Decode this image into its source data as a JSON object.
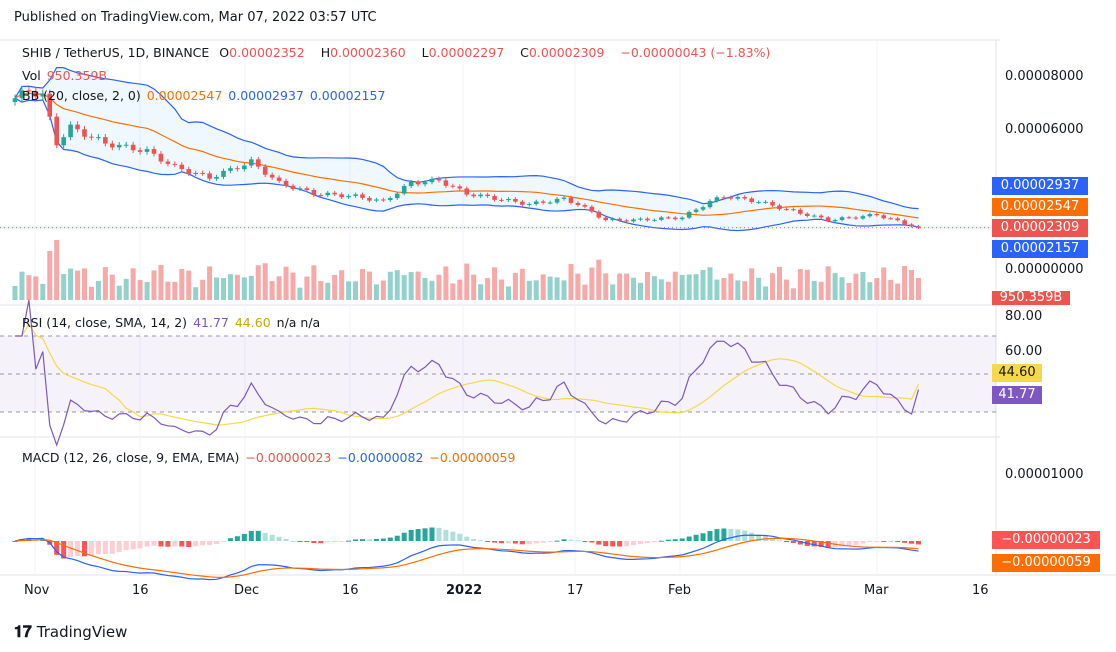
{
  "published": "Published on TradingView.com, Mar 07, 2022 03:57 UTC",
  "symbol": "SHIB / TetherUS, 1D, BINANCE",
  "ohlc": {
    "o_label": "O",
    "o": "0.00002352",
    "h_label": "H",
    "h": "0.00002360",
    "l_label": "L",
    "l": "0.00002297",
    "c_label": "C",
    "c": "0.00002309",
    "change": "−0.00000043 (−1.83%)"
  },
  "vol": {
    "label": "Vol",
    "value": "950.359B"
  },
  "bb": {
    "label": "BB (20, close, 2, 0)",
    "basis": "0.00002547",
    "upper": "0.00002937",
    "lower": "0.00002157"
  },
  "rsi": {
    "label": "RSI (14, close, SMA, 14, 2)",
    "value": "41.77",
    "sma": "44.60",
    "extra": "n/a  n/a"
  },
  "macd": {
    "label": "MACD (12, 26, close, 9, EMA, EMA)",
    "hist": "−0.00000023",
    "macd": "−0.00000082",
    "signal": "−0.00000059"
  },
  "price_axis": [
    "0.00008000",
    "0.00006000",
    "0.00000000"
  ],
  "rsi_axis": [
    "80.00",
    "60.00"
  ],
  "macd_axis": [
    "0.00001000"
  ],
  "tags": {
    "upper": "0.00002937",
    "basis": "0.00002547",
    "close": "0.00002309",
    "lower": "0.00002157",
    "vol": "950.359B",
    "rsi_sma": "44.60",
    "rsi": "41.77",
    "macd_hist": "−0.00000023",
    "macd_signal": "−0.00000059"
  },
  "time_axis": [
    "Nov",
    "16",
    "Dec",
    "16",
    "2022",
    "17",
    "Feb",
    "Mar",
    "16"
  ],
  "brand": "TradingView",
  "colors": {
    "up": "#26a69a",
    "down": "#ef5350",
    "bb_upper": "#2962ff",
    "bb_basis": "#ff6d00",
    "rsi": "#7e57c2",
    "rsi_sma": "#f5d94a"
  },
  "chart_data": {
    "type": "candlestick",
    "title": "SHIB / TetherUS, 1D, BINANCE",
    "x_range": [
      "2021-10-28",
      "2022-03-07"
    ],
    "close_keypoints_day_price_e5": [
      [
        0,
        7.2
      ],
      [
        2,
        7.5
      ],
      [
        4,
        7.3
      ],
      [
        6,
        5.5
      ],
      [
        8,
        6.1
      ],
      [
        13,
        5.5
      ],
      [
        19,
        5.2
      ],
      [
        23,
        4.6
      ],
      [
        28,
        4.2
      ],
      [
        34,
        4.8
      ],
      [
        38,
        4.0
      ],
      [
        43,
        3.6
      ],
      [
        49,
        3.5
      ],
      [
        53,
        3.3
      ],
      [
        57,
        4.0
      ],
      [
        61,
        4.1
      ],
      [
        65,
        3.6
      ],
      [
        74,
        3.2
      ],
      [
        79,
        3.4
      ],
      [
        81,
        3.2
      ],
      [
        85,
        2.6
      ],
      [
        89,
        2.6
      ],
      [
        96,
        2.7
      ],
      [
        100,
        3.3
      ],
      [
        102,
        3.5
      ],
      [
        107,
        3.3
      ],
      [
        111,
        3.0
      ],
      [
        117,
        2.6
      ],
      [
        124,
        2.8
      ],
      [
        130,
        2.309
      ]
    ],
    "ylim_price": [
      0,
      9e-05
    ]
  }
}
